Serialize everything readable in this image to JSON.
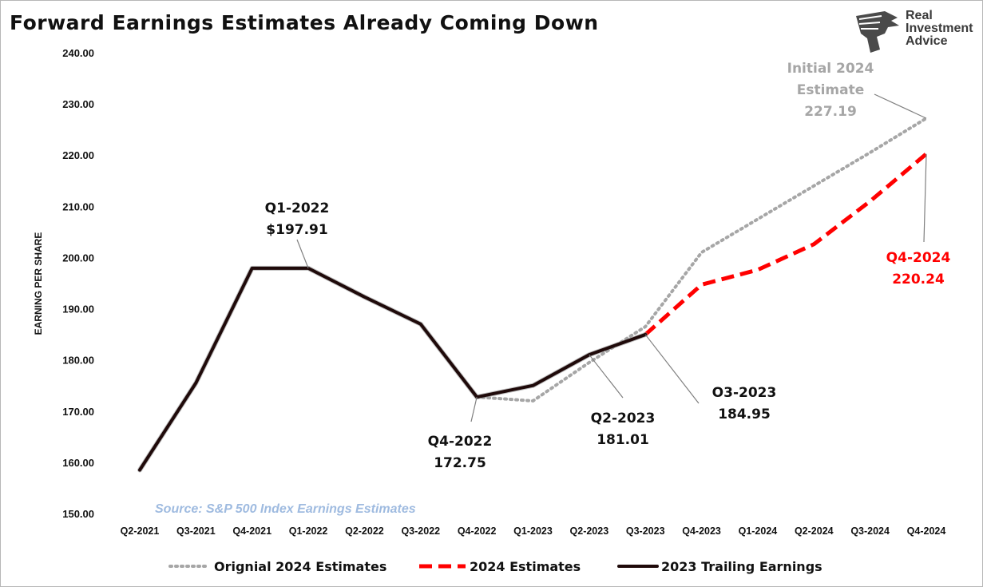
{
  "title": "Forward Earnings Estimates Already Coming Down",
  "logo": {
    "line1": "Real",
    "line2": "Investment",
    "line3": "Advice"
  },
  "source_note": "Source: S&P 500 Index Earnings Estimates",
  "colors": {
    "original": "#a6a6a6",
    "estimates": "#ff0000",
    "trailing": "#1f0a0a",
    "source": "#9fbbe0"
  },
  "chart_data": {
    "type": "line",
    "title": "Forward Earnings Estimates Already Coming Down",
    "xlabel": "",
    "ylabel": "EARNING PER SHARE",
    "ylim": [
      150,
      240
    ],
    "yticks": [
      "150.00",
      "160.00",
      "170.00",
      "180.00",
      "190.00",
      "200.00",
      "210.00",
      "220.00",
      "230.00",
      "240.00"
    ],
    "grid": false,
    "legend_position": "bottom",
    "categories": [
      "Q2-2021",
      "Q3-2021",
      "Q4-2021",
      "Q1-2022",
      "Q2-2022",
      "Q3-2022",
      "Q4-2022",
      "Q1-2023",
      "Q2-2023",
      "Q3-2023",
      "Q4-2023",
      "Q1-2024",
      "Q2-2024",
      "Q3-2024",
      "Q4-2024"
    ],
    "series": [
      {
        "name": "Orignial 2024 Estimates",
        "style": "dotted",
        "color": "#a6a6a6",
        "values": [
          null,
          null,
          null,
          null,
          null,
          null,
          172.75,
          172.0,
          179.5,
          186.5,
          201.0,
          207.5,
          214.0,
          220.5,
          227.19
        ]
      },
      {
        "name": "2024 Estimates",
        "style": "dashed",
        "color": "#ff0000",
        "values": [
          null,
          null,
          null,
          null,
          null,
          null,
          null,
          null,
          null,
          184.95,
          194.7,
          197.6,
          202.6,
          211.0,
          220.24
        ]
      },
      {
        "name": "2023 Trailing Earnings",
        "style": "solid",
        "color": "#1f0a0a",
        "values": [
          158.5,
          175.5,
          197.91,
          197.91,
          192.3,
          187.0,
          172.75,
          175.0,
          181.01,
          184.95,
          null,
          null,
          null,
          null,
          null
        ]
      }
    ],
    "annotations": [
      {
        "lines": [
          "Q1-2022",
          "$197.91"
        ],
        "color": "#111111",
        "x": "Q1-2022",
        "y": 197.91
      },
      {
        "lines": [
          "Q4-2022",
          "172.75"
        ],
        "color": "#111111",
        "x": "Q4-2022",
        "y": 172.75
      },
      {
        "lines": [
          "Q2-2023",
          "181.01"
        ],
        "color": "#111111",
        "x": "Q2-2023",
        "y": 181.01
      },
      {
        "lines": [
          "O3-2023",
          "184.95"
        ],
        "color": "#111111",
        "x": "Q3-2023",
        "y": 184.95
      },
      {
        "lines": [
          "Initial 2024",
          "Estimate",
          "227.19"
        ],
        "color": "#a6a6a6",
        "x": "Q4-2024",
        "y": 227.19
      },
      {
        "lines": [
          "Q4-2024",
          "220.24"
        ],
        "color": "#ff0000",
        "x": "Q4-2024",
        "y": 220.24
      }
    ]
  }
}
